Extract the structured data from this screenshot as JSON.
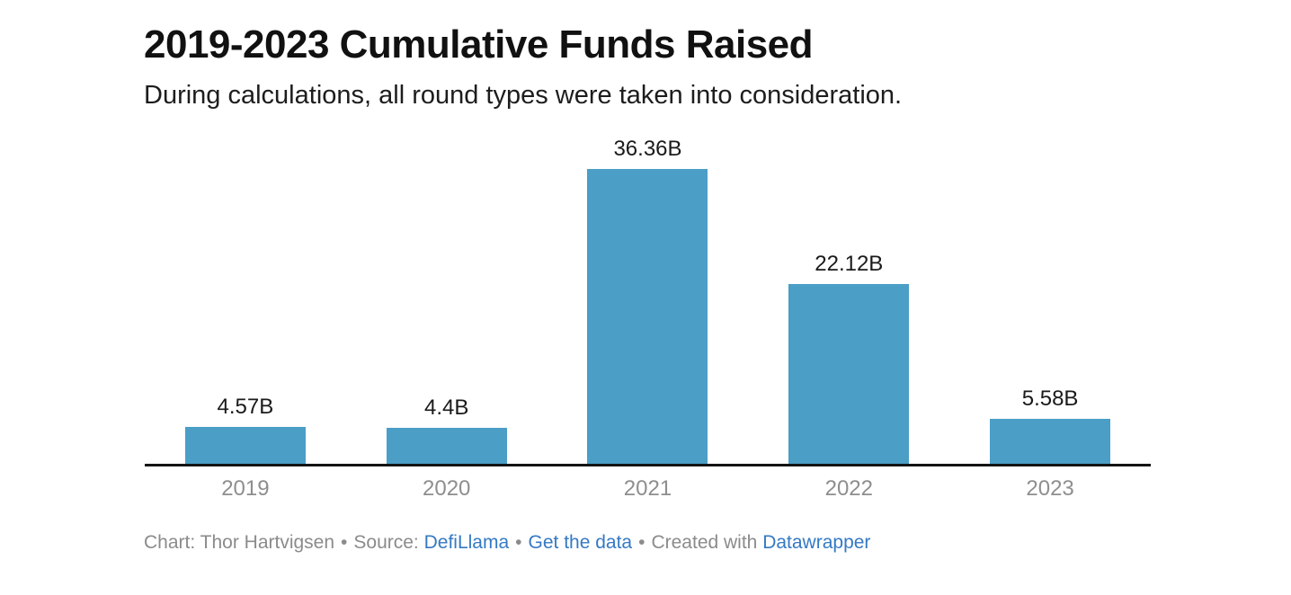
{
  "header": {
    "title": "2019-2023 Cumulative Funds Raised",
    "subtitle": "During calculations, all round types were taken into consideration."
  },
  "chart_data": {
    "type": "bar",
    "title": "2019-2023 Cumulative Funds Raised",
    "subtitle": "During calculations, all round types were taken into consideration.",
    "categories": [
      "2019",
      "2020",
      "2021",
      "2022",
      "2023"
    ],
    "values": [
      4.57,
      4.4,
      36.36,
      22.12,
      5.58
    ],
    "value_labels": [
      "4.57B",
      "4.4B",
      "36.36B",
      "22.12B",
      "5.58B"
    ],
    "unit": "B",
    "xlabel": "",
    "ylabel": "",
    "ylim": [
      0,
      36.36
    ],
    "grid": false,
    "legend": false,
    "bar_color": "#4b9ec6",
    "axis_color": "#141414",
    "tick_label_color": "#8e8e8e"
  },
  "footer": {
    "chart_credit": "Chart: Thor Hartvigsen",
    "separator": "•",
    "source_label": "Source:",
    "source_link": "DefiLlama",
    "get_data_link": "Get the data",
    "created_with": "Created with",
    "datawrapper_link": "Datawrapper",
    "link_color": "#3579c4",
    "text_color": "#8b8b8b"
  }
}
